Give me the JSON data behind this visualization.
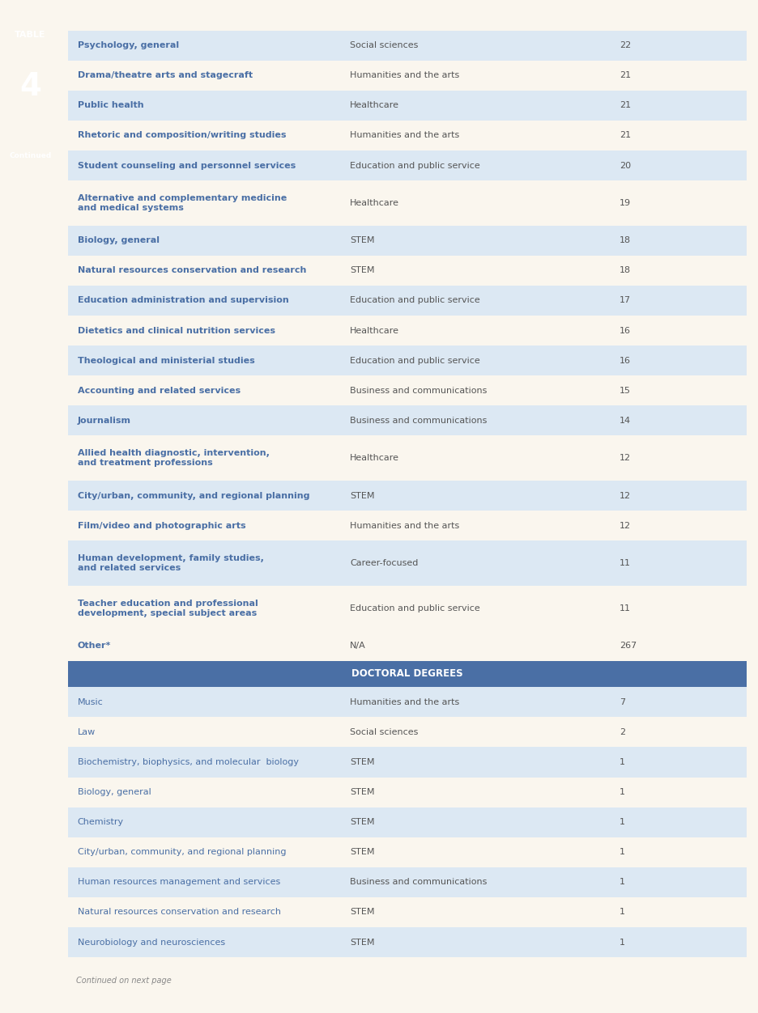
{
  "page_bg": "#faf6ee",
  "table_bg_light": "#dce8f3",
  "table_bg_white": "#f5f9fd",
  "header_bg": "#4a6fa5",
  "header_text_color": "#ffffff",
  "col1_text_color": "#4a6fa5",
  "col2_text_color": "#555555",
  "col3_text_color": "#555555",
  "sidebar_bg": "#e8a030",
  "sidebar_text": "#ffffff",
  "table_number": "4",
  "table_label": "TABLE",
  "continued_label": "Continued",
  "continued_bottom": "Continued on next page",
  "rows": [
    {
      "col1": "Psychology, general",
      "col2": "Social sciences",
      "col3": "22",
      "shaded": true
    },
    {
      "col1": "Drama/theatre arts and stagecraft",
      "col2": "Humanities and the arts",
      "col3": "21",
      "shaded": false
    },
    {
      "col1": "Public health",
      "col2": "Healthcare",
      "col3": "21",
      "shaded": true
    },
    {
      "col1": "Rhetoric and composition/writing studies",
      "col2": "Humanities and the arts",
      "col3": "21",
      "shaded": false
    },
    {
      "col1": "Student counseling and personnel services",
      "col2": "Education and public service",
      "col3": "20",
      "shaded": true
    },
    {
      "col1": "Alternative and complementary medicine\nand medical systems",
      "col2": "Healthcare",
      "col3": "19",
      "shaded": false
    },
    {
      "col1": "Biology, general",
      "col2": "STEM",
      "col3": "18",
      "shaded": true
    },
    {
      "col1": "Natural resources conservation and research",
      "col2": "STEM",
      "col3": "18",
      "shaded": false
    },
    {
      "col1": "Education administration and supervision",
      "col2": "Education and public service",
      "col3": "17",
      "shaded": true
    },
    {
      "col1": "Dietetics and clinical nutrition services",
      "col2": "Healthcare",
      "col3": "16",
      "shaded": false
    },
    {
      "col1": "Theological and ministerial studies",
      "col2": "Education and public service",
      "col3": "16",
      "shaded": true
    },
    {
      "col1": "Accounting and related services",
      "col2": "Business and communications",
      "col3": "15",
      "shaded": false
    },
    {
      "col1": "Journalism",
      "col2": "Business and communications",
      "col3": "14",
      "shaded": true
    },
    {
      "col1": "Allied health diagnostic, intervention,\nand treatment professions",
      "col2": "Healthcare",
      "col3": "12",
      "shaded": false
    },
    {
      "col1": "City/urban, community, and regional planning",
      "col2": "STEM",
      "col3": "12",
      "shaded": true
    },
    {
      "col1": "Film/video and photographic arts",
      "col2": "Humanities and the arts",
      "col3": "12",
      "shaded": false
    },
    {
      "col1": "Human development, family studies,\nand related services",
      "col2": "Career-focused",
      "col3": "11",
      "shaded": true
    },
    {
      "col1": "Teacher education and professional\ndevelopment, special subject areas",
      "col2": "Education and public service",
      "col3": "11",
      "shaded": false
    },
    {
      "col1": "Other*",
      "col2": "N/A",
      "col3": "267",
      "shaded": false
    }
  ],
  "section_header": "DOCTORAL DEGREES",
  "doctoral_rows": [
    {
      "col1": "Music",
      "col2": "Humanities and the arts",
      "col3": "7",
      "shaded": true
    },
    {
      "col1": "Law",
      "col2": "Social sciences",
      "col3": "2",
      "shaded": false
    },
    {
      "col1": "Biochemistry, biophysics, and molecular  biology",
      "col2": "STEM",
      "col3": "1",
      "shaded": true
    },
    {
      "col1": "Biology, general",
      "col2": "STEM",
      "col3": "1",
      "shaded": false
    },
    {
      "col1": "Chemistry",
      "col2": "STEM",
      "col3": "1",
      "shaded": true
    },
    {
      "col1": "City/urban, community, and regional planning",
      "col2": "STEM",
      "col3": "1",
      "shaded": false
    },
    {
      "col1": "Human resources management and services",
      "col2": "Business and communications",
      "col3": "1",
      "shaded": true
    },
    {
      "col1": "Natural resources conservation and research",
      "col2": "STEM",
      "col3": "1",
      "shaded": false
    },
    {
      "col1": "Neurobiology and neurosciences",
      "col2": "STEM",
      "col3": "1",
      "shaded": true
    }
  ]
}
